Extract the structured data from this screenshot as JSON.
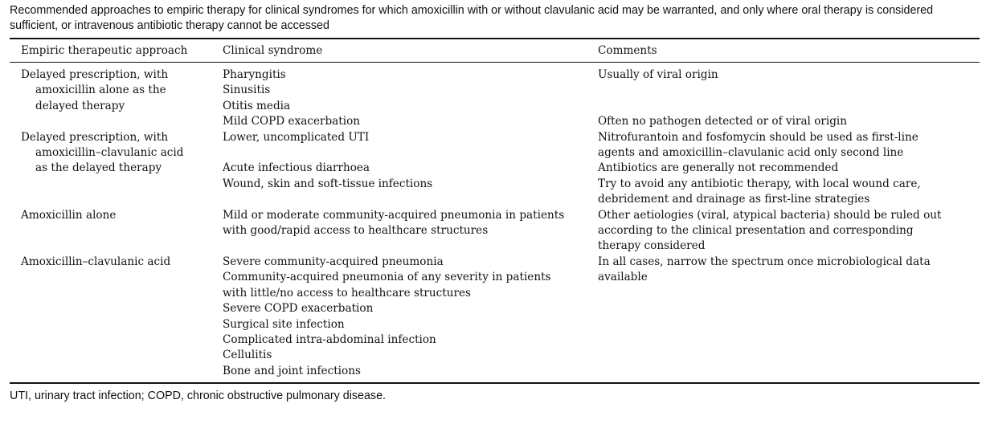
{
  "caption": "Recommended approaches to empiric therapy for clinical syndromes for which amoxicillin with or without clavulanic acid may be warranted, and only where oral therapy is considered sufficient, or intravenous antibiotic therapy cannot be accessed",
  "headers": [
    "Empiric therapeutic approach",
    "Clinical syndrome",
    "Comments"
  ],
  "rows": {
    "approach": [
      "Delayed prescription, with",
      "amoxicillin alone as the",
      "delayed therapy",
      "Delayed prescription, with",
      "amoxicillin–clavulanic acid",
      "as the delayed therapy",
      "Amoxicillin alone",
      "Amoxicillin–clavulanic acid"
    ],
    "syndrome": [
      "Pharyngitis",
      "Sinusitis",
      "Otitis media",
      "Mild COPD exacerbation",
      "Lower, uncomplicated UTI",
      "Acute infectious diarrhoea",
      "Wound, skin and soft-tissue infections",
      "Mild or moderate community-acquired pneumonia in patients",
      "with good/rapid access to healthcare structures",
      "Severe community-acquired pneumonia",
      "Community-acquired pneumonia of any severity in patients",
      "with little/no access to healthcare structures",
      "Severe COPD exacerbation",
      "Surgical site infection",
      "Complicated intra-abdominal infection",
      "Cellulitis",
      "Bone and joint infections"
    ],
    "comments": [
      "Usually of viral origin",
      "Often no pathogen detected or of viral origin",
      "Nitrofurantoin and fosfomycin should be used as first-line",
      "agents and amoxicillin–clavulanic acid only second line",
      "Antibiotics are generally not recommended",
      "Try to avoid any antibiotic therapy, with local wound care,",
      "debridement and drainage as first-line strategies",
      "Other aetiologies (viral, atypical bacteria) should be ruled out",
      "according to the clinical presentation and corresponding",
      "therapy considered",
      "In all cases, narrow the spectrum once microbiological data",
      "available"
    ]
  },
  "footnote": "UTI, urinary tract infection; COPD, chronic obstructive pulmonary disease."
}
